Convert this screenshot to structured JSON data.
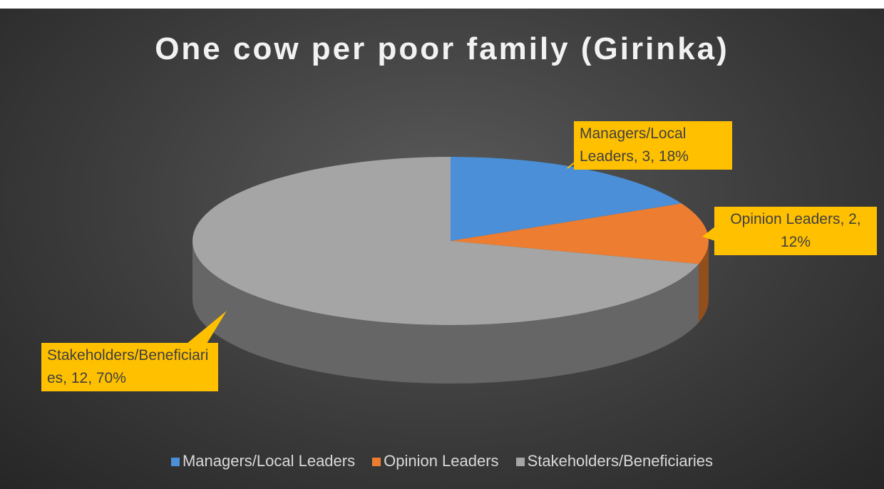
{
  "chart_data": {
    "type": "pie",
    "title": "One cow per poor family (Girinka)",
    "categories": [
      "Managers/Local Leaders",
      "Opinion Leaders",
      "Stakeholders/Beneficiaries"
    ],
    "values": [
      3,
      2,
      12
    ],
    "value_labels": [
      "Managers/Local Leaders, 3, 18%",
      "Opinion Leaders, 2, 12%",
      "Stakeholders/Beneficiaries, 12, 70%"
    ],
    "colors": [
      "#4a8fd8",
      "#ed7d31",
      "#a5a5a5"
    ],
    "legend": "bottom"
  }
}
